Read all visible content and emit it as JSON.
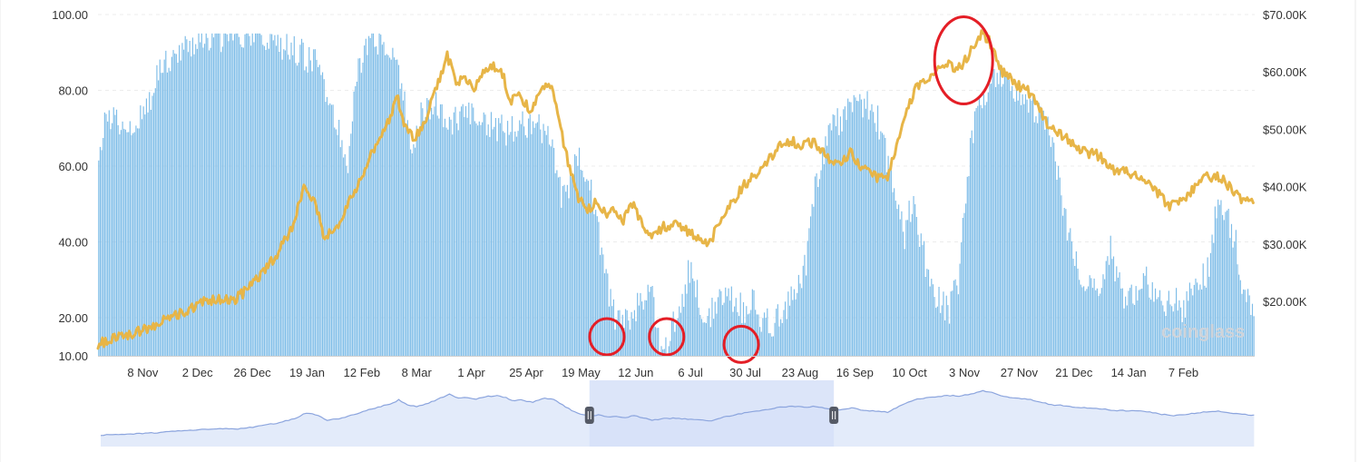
{
  "chart_data": {
    "type": "bar+line",
    "watermark": "coinglass",
    "x_ticks": [
      "8 Nov",
      "2 Dec",
      "26 Dec",
      "19 Jan",
      "12 Feb",
      "8 Mar",
      "1 Apr",
      "25 Apr",
      "19 May",
      "12 Jun",
      "6 Jul",
      "30 Jul",
      "23 Aug",
      "16 Sep",
      "10 Oct",
      "3 Nov",
      "27 Nov",
      "21 Dec",
      "14 Jan",
      "7 Feb"
    ],
    "y_left_ticks": [
      "10.00",
      "20.00",
      "40.00",
      "60.00",
      "80.00",
      "100.00"
    ],
    "y_left_values": [
      10,
      20,
      40,
      60,
      80,
      100
    ],
    "y_right_ticks": [
      "$20.00K",
      "$30.00K",
      "$40.00K",
      "$50.00K",
      "$60.00K",
      "$70.00K"
    ],
    "y_right_values": [
      20000,
      30000,
      40000,
      50000,
      60000,
      70000
    ],
    "ylim_left": [
      10,
      100
    ],
    "ylim_right": [
      12000,
      70000
    ],
    "grid": "horizontal-dashed",
    "colors": {
      "bars": "#7fbde8",
      "price": "#e7b547",
      "annotation": "#e41e26",
      "navigator_fill": "#e3ebfa",
      "navigator_line": "#8ca5de",
      "navigator_selection": "#d6e0f8"
    },
    "bar_series": {
      "name": "",
      "keypoints": [
        [
          0,
          59
        ],
        [
          5,
          74
        ],
        [
          12,
          72
        ],
        [
          20,
          71
        ],
        [
          30,
          73
        ],
        [
          42,
          87
        ],
        [
          55,
          91
        ],
        [
          65,
          93
        ],
        [
          80,
          94
        ],
        [
          95,
          93
        ],
        [
          110,
          94
        ],
        [
          120,
          92
        ],
        [
          135,
          90
        ],
        [
          148,
          86
        ],
        [
          158,
          73
        ],
        [
          167,
          62
        ],
        [
          172,
          84
        ],
        [
          180,
          92
        ],
        [
          188,
          93
        ],
        [
          196,
          91
        ],
        [
          204,
          80
        ],
        [
          210,
          60
        ],
        [
          216,
          75
        ],
        [
          226,
          76
        ],
        [
          236,
          72
        ],
        [
          246,
          73
        ],
        [
          256,
          72
        ],
        [
          266,
          70
        ],
        [
          276,
          69
        ],
        [
          286,
          71
        ],
        [
          296,
          70
        ],
        [
          304,
          66
        ],
        [
          310,
          52
        ],
        [
          316,
          56
        ],
        [
          322,
          63
        ],
        [
          328,
          58
        ],
        [
          334,
          45
        ],
        [
          340,
          30
        ],
        [
          346,
          20
        ],
        [
          352,
          18
        ],
        [
          358,
          22
        ],
        [
          364,
          25
        ],
        [
          370,
          28
        ],
        [
          375,
          14
        ],
        [
          380,
          12
        ],
        [
          386,
          20
        ],
        [
          392,
          26
        ],
        [
          397,
          35
        ],
        [
          402,
          25
        ],
        [
          408,
          20
        ],
        [
          414,
          24
        ],
        [
          420,
          28
        ],
        [
          426,
          25
        ],
        [
          432,
          22
        ],
        [
          438,
          25
        ],
        [
          444,
          20
        ],
        [
          450,
          18
        ],
        [
          456,
          20
        ],
        [
          462,
          24
        ],
        [
          468,
          27
        ],
        [
          474,
          35
        ],
        [
          480,
          55
        ],
        [
          486,
          64
        ],
        [
          492,
          70
        ],
        [
          498,
          73
        ],
        [
          504,
          75
        ],
        [
          510,
          76
        ],
        [
          516,
          76
        ],
        [
          522,
          72
        ],
        [
          528,
          62
        ],
        [
          534,
          50
        ],
        [
          540,
          42
        ],
        [
          546,
          52
        ],
        [
          552,
          38
        ],
        [
          558,
          28
        ],
        [
          564,
          24
        ],
        [
          570,
          22
        ],
        [
          576,
          30
        ],
        [
          582,
          58
        ],
        [
          588,
          76
        ],
        [
          594,
          80
        ],
        [
          600,
          82
        ],
        [
          606,
          84
        ],
        [
          612,
          81
        ],
        [
          618,
          77
        ],
        [
          624,
          76
        ],
        [
          630,
          74
        ],
        [
          636,
          72
        ],
        [
          642,
          60
        ],
        [
          648,
          45
        ],
        [
          654,
          36
        ],
        [
          660,
          30
        ],
        [
          666,
          28
        ],
        [
          672,
          26
        ],
        [
          678,
          38
        ],
        [
          684,
          28
        ],
        [
          690,
          24
        ],
        [
          696,
          28
        ],
        [
          702,
          30
        ],
        [
          708,
          27
        ],
        [
          714,
          24
        ],
        [
          720,
          25
        ],
        [
          726,
          22
        ],
        [
          732,
          26
        ],
        [
          738,
          29
        ],
        [
          744,
          33
        ],
        [
          750,
          53
        ],
        [
          756,
          46
        ],
        [
          762,
          40
        ],
        [
          766,
          28
        ],
        [
          774,
          22
        ]
      ]
    },
    "price_series": {
      "name": "",
      "keypoints": [
        [
          0,
          12500
        ],
        [
          10,
          13500
        ],
        [
          25,
          14500
        ],
        [
          40,
          16000
        ],
        [
          50,
          17500
        ],
        [
          60,
          18500
        ],
        [
          70,
          20000
        ],
        [
          80,
          20500
        ],
        [
          90,
          20000
        ],
        [
          100,
          22000
        ],
        [
          110,
          25000
        ],
        [
          120,
          28000
        ],
        [
          130,
          33000
        ],
        [
          138,
          40000
        ],
        [
          146,
          37000
        ],
        [
          152,
          31000
        ],
        [
          160,
          33000
        ],
        [
          170,
          38000
        ],
        [
          180,
          44000
        ],
        [
          188,
          48000
        ],
        [
          196,
          52000
        ],
        [
          200,
          56000
        ],
        [
          206,
          50000
        ],
        [
          212,
          48000
        ],
        [
          220,
          52000
        ],
        [
          228,
          58000
        ],
        [
          234,
          63000
        ],
        [
          240,
          58000
        ],
        [
          246,
          59000
        ],
        [
          252,
          57000
        ],
        [
          258,
          60000
        ],
        [
          266,
          61000
        ],
        [
          272,
          59000
        ],
        [
          276,
          55000
        ],
        [
          282,
          56000
        ],
        [
          290,
          53000
        ],
        [
          298,
          58000
        ],
        [
          304,
          57000
        ],
        [
          310,
          50000
        ],
        [
          316,
          43000
        ],
        [
          322,
          38000
        ],
        [
          328,
          36000
        ],
        [
          334,
          37500
        ],
        [
          340,
          35000
        ],
        [
          346,
          36000
        ],
        [
          352,
          34000
        ],
        [
          358,
          37000
        ],
        [
          364,
          34000
        ],
        [
          370,
          31000
        ],
        [
          378,
          33000
        ],
        [
          386,
          33500
        ],
        [
          394,
          32500
        ],
        [
          402,
          31000
        ],
        [
          410,
          30000
        ],
        [
          416,
          34000
        ],
        [
          424,
          37000
        ],
        [
          432,
          40000
        ],
        [
          440,
          42000
        ],
        [
          448,
          44000
        ],
        [
          456,
          47000
        ],
        [
          464,
          48000
        ],
        [
          472,
          47000
        ],
        [
          480,
          48000
        ],
        [
          488,
          45000
        ],
        [
          496,
          44000
        ],
        [
          504,
          46000
        ],
        [
          512,
          43000
        ],
        [
          520,
          42000
        ],
        [
          528,
          41000
        ],
        [
          534,
          46000
        ],
        [
          540,
          52000
        ],
        [
          548,
          57000
        ],
        [
          556,
          59000
        ],
        [
          562,
          60000
        ],
        [
          568,
          61500
        ],
        [
          576,
          60500
        ],
        [
          584,
          63000
        ],
        [
          592,
          67000
        ],
        [
          598,
          65000
        ],
        [
          606,
          60000
        ],
        [
          614,
          58000
        ],
        [
          622,
          57000
        ],
        [
          630,
          54000
        ],
        [
          638,
          50000
        ],
        [
          646,
          49000
        ],
        [
          654,
          47000
        ],
        [
          662,
          46000
        ],
        [
          670,
          45500
        ],
        [
          680,
          43000
        ],
        [
          690,
          42500
        ],
        [
          700,
          42000
        ],
        [
          710,
          39000
        ],
        [
          718,
          36500
        ],
        [
          726,
          37500
        ],
        [
          734,
          39500
        ],
        [
          742,
          41500
        ],
        [
          750,
          42000
        ],
        [
          758,
          40000
        ],
        [
          766,
          38000
        ],
        [
          774,
          37500
        ]
      ]
    },
    "annotations": [
      {
        "type": "circle",
        "x_day": 341,
        "y": 15
      },
      {
        "type": "circle",
        "x_day": 381,
        "y": 15
      },
      {
        "type": "circle",
        "x_day": 431,
        "y": 13
      },
      {
        "type": "ellipse",
        "x_day": 580,
        "y_price": 62000
      }
    ],
    "navigator": {
      "selection_start_day": 328,
      "selection_end_day": 492
    }
  }
}
